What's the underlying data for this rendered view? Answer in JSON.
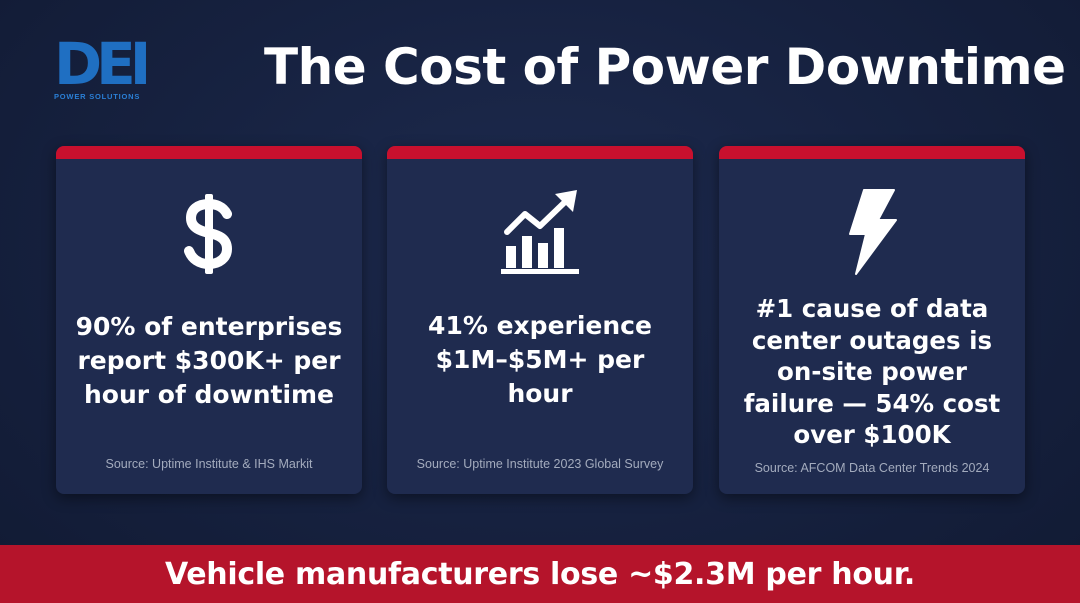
{
  "logo": {
    "mark": "DEI",
    "subtitle": "POWER SOLUTIONS"
  },
  "title": "The Cost of Power Downtime",
  "cards": [
    {
      "icon": "dollar-icon",
      "stat": "90% of enterprises report $300K+ per hour of downtime",
      "source": "Source: Uptime Institute & IHS Markit"
    },
    {
      "icon": "bar-chart-trend-icon",
      "stat": "41% experience $1M–$5M+ per hour",
      "source": "Source: Uptime Institute 2023 Global Survey"
    },
    {
      "icon": "lightning-bolt-icon",
      "stat": "#1 cause of data center outages is on-site power failure — 54% cost over $100K",
      "source": "Source: AFCOM Data Center Trends 2024"
    }
  ],
  "banner": "Vehicle manufacturers lose ~$2.3M per hour.",
  "colors": {
    "background": "#16213f",
    "card": "#1f2b4f",
    "accent_red": "#c8102e",
    "logo_blue": "#1f6fc2"
  }
}
